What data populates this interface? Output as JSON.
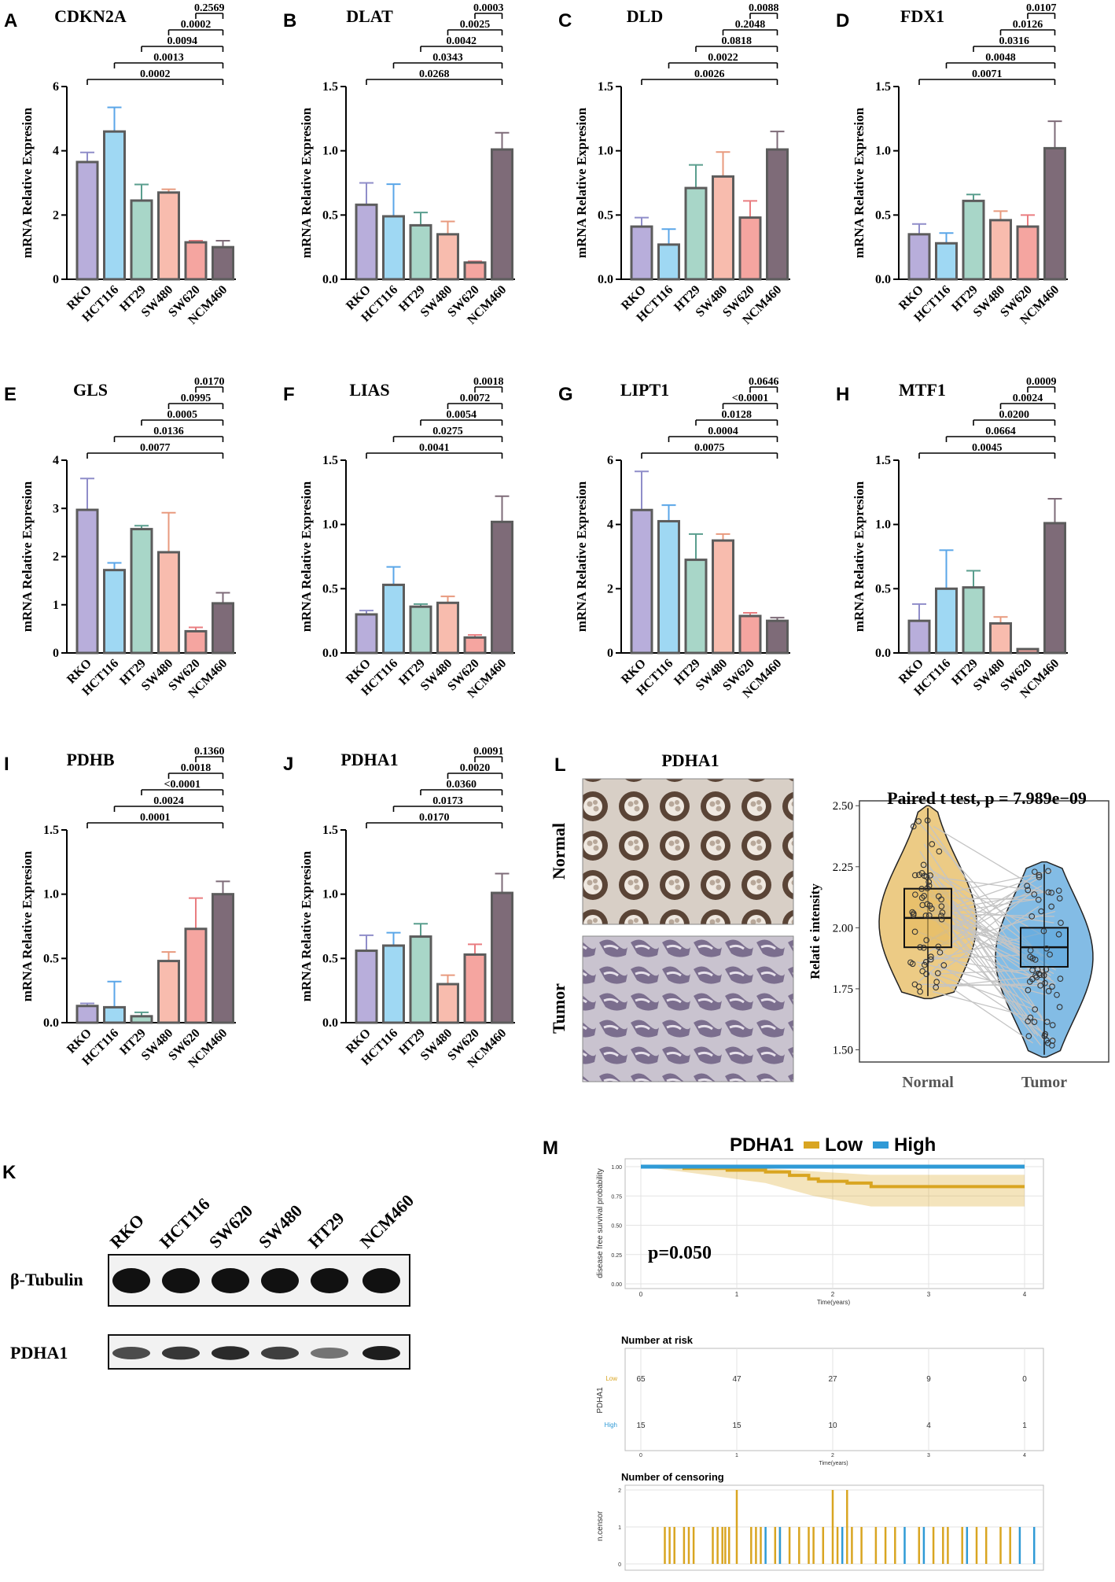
{
  "chart_data": {
    "type": "bar",
    "cell_lines": [
      "RKO",
      "HCT116",
      "HT29",
      "SW480",
      "SW620",
      "NCM460"
    ],
    "bar_colors": [
      "#b8aedb",
      "#9fd8f3",
      "#a8d6c8",
      "#f8bcae",
      "#f5a5a0",
      "#7e6b78"
    ],
    "err_colors": [
      "#8f8dc9",
      "#5aa6e8",
      "#5a9e8e",
      "#e89a7e",
      "#e97d80",
      "#7e6b78"
    ],
    "ylabel": "mRNA Relative Expresion",
    "bar_panels": [
      {
        "letter": "A",
        "title": "CDKN2A",
        "ylim": [
          0,
          6
        ],
        "yticks": [
          "0",
          "2",
          "4",
          "6"
        ],
        "values": [
          3.65,
          4.6,
          2.45,
          2.7,
          1.15,
          1.0
        ],
        "errors": [
          0.3,
          0.75,
          0.5,
          0.1,
          0.05,
          0.2
        ],
        "pvalues": [
          "0.0002",
          "0.0013",
          "0.0094",
          "0.0002",
          "0.2569"
        ]
      },
      {
        "letter": "B",
        "title": "DLAT",
        "ylim": [
          0,
          1.5
        ],
        "yticks": [
          "0.0",
          "0.5",
          "1.0",
          "1.5"
        ],
        "values": [
          0.58,
          0.49,
          0.42,
          0.35,
          0.13,
          1.01
        ],
        "errors": [
          0.17,
          0.25,
          0.1,
          0.1,
          0.01,
          0.13
        ],
        "pvalues": [
          "0.0268",
          "0.0343",
          "0.0042",
          "0.0025",
          "0.0003"
        ]
      },
      {
        "letter": "C",
        "title": "DLD",
        "ylim": [
          0,
          1.5
        ],
        "yticks": [
          "0.0",
          "0.5",
          "1.0",
          "1.5"
        ],
        "values": [
          0.41,
          0.27,
          0.71,
          0.8,
          0.48,
          1.01
        ],
        "errors": [
          0.07,
          0.12,
          0.18,
          0.19,
          0.13,
          0.14
        ],
        "pvalues": [
          "0.0026",
          "0.0022",
          "0.0818",
          "0.2048",
          "0.0088"
        ]
      },
      {
        "letter": "D",
        "title": "FDX1",
        "ylim": [
          0,
          1.5
        ],
        "yticks": [
          "0.0",
          "0.5",
          "1.0",
          "1.5"
        ],
        "values": [
          0.35,
          0.28,
          0.61,
          0.46,
          0.41,
          1.02
        ],
        "errors": [
          0.08,
          0.08,
          0.05,
          0.07,
          0.09,
          0.21
        ],
        "pvalues": [
          "0.0071",
          "0.0048",
          "0.0316",
          "0.0126",
          "0.0107"
        ]
      },
      {
        "letter": "E",
        "title": "GLS",
        "ylim": [
          0,
          4
        ],
        "yticks": [
          "0",
          "1",
          "2",
          "3",
          "4"
        ],
        "values": [
          2.97,
          1.72,
          2.57,
          2.09,
          0.45,
          1.03
        ],
        "errors": [
          0.65,
          0.15,
          0.07,
          0.82,
          0.08,
          0.22
        ],
        "pvalues": [
          "0.0077",
          "0.0136",
          "0.0005",
          "0.0995",
          "0.0170"
        ]
      },
      {
        "letter": "F",
        "title": "LIAS",
        "ylim": [
          0,
          1.5
        ],
        "yticks": [
          "0.0",
          "0.5",
          "1.0",
          "1.5"
        ],
        "values": [
          0.3,
          0.53,
          0.36,
          0.39,
          0.12,
          1.02
        ],
        "errors": [
          0.03,
          0.14,
          0.02,
          0.05,
          0.02,
          0.2
        ],
        "pvalues": [
          "0.0041",
          "0.0275",
          "0.0054",
          "0.0072",
          "0.0018"
        ]
      },
      {
        "letter": "G",
        "title": "LIPT1",
        "ylim": [
          0,
          6
        ],
        "yticks": [
          "0",
          "2",
          "4",
          "6"
        ],
        "values": [
          4.45,
          4.1,
          2.9,
          3.5,
          1.15,
          1.0
        ],
        "errors": [
          1.2,
          0.5,
          0.8,
          0.2,
          0.1,
          0.1
        ],
        "pvalues": [
          "0.0075",
          "0.0004",
          "0.0128",
          "<0.0001",
          "0.0646"
        ]
      },
      {
        "letter": "H",
        "title": "MTF1",
        "ylim": [
          0,
          1.5
        ],
        "yticks": [
          "0.0",
          "0.5",
          "1.0",
          "1.5"
        ],
        "values": [
          0.25,
          0.5,
          0.51,
          0.23,
          0.03,
          1.01
        ],
        "errors": [
          0.13,
          0.3,
          0.13,
          0.05,
          0.0,
          0.19
        ],
        "pvalues": [
          "0.0045",
          "0.0664",
          "0.0200",
          "0.0024",
          "0.0009"
        ]
      },
      {
        "letter": "I",
        "title": "PDHB",
        "ylim": [
          0,
          1.5
        ],
        "yticks": [
          "0.0",
          "0.5",
          "1.0",
          "1.5"
        ],
        "values": [
          0.13,
          0.12,
          0.05,
          0.48,
          0.73,
          1.0
        ],
        "errors": [
          0.02,
          0.2,
          0.03,
          0.07,
          0.24,
          0.1
        ],
        "pvalues": [
          "0.0001",
          "0.0024",
          "<0.0001",
          "0.0018",
          "0.1360"
        ]
      },
      {
        "letter": "J",
        "title": "PDHA1",
        "ylim": [
          0,
          1.5
        ],
        "yticks": [
          "0.0",
          "0.5",
          "1.0",
          "1.5"
        ],
        "values": [
          0.56,
          0.6,
          0.67,
          0.3,
          0.53,
          1.01
        ],
        "errors": [
          0.12,
          0.1,
          0.1,
          0.07,
          0.08,
          0.15
        ],
        "pvalues": [
          "0.0170",
          "0.0173",
          "0.0360",
          "0.0020",
          "0.0091"
        ]
      }
    ],
    "violin": {
      "letter": "L",
      "ihc_title": "PDHA1",
      "row_labels": [
        "Normal",
        "Tumor"
      ],
      "stat_title": "Paired t test, p = 7.989e−09",
      "ylabel": "Relati e intensity",
      "groups": [
        "Normal",
        "Tumor"
      ],
      "ylim": [
        1.45,
        2.52
      ],
      "yticks": [
        "1.50",
        "1.75",
        "2.00",
        "2.25",
        "2.50"
      ],
      "normal_box": {
        "q1": 1.92,
        "median": 2.04,
        "q3": 2.16,
        "min": 1.72,
        "max": 2.49
      },
      "tumor_box": {
        "q1": 1.84,
        "median": 1.92,
        "q3": 2.0,
        "min": 1.48,
        "max": 2.26
      },
      "colors": {
        "normal": "#e6b95c",
        "tumor": "#5aa5dc"
      }
    },
    "blot": {
      "letter": "K",
      "lanes": [
        "RKO",
        "HCT116",
        "SW620",
        "SW480",
        "HT29",
        "NCM460"
      ],
      "rows": [
        "β-Tubulin",
        "PDHA1"
      ],
      "pdha1_intensity": [
        0.65,
        0.8,
        0.9,
        0.75,
        0.35,
        1.0
      ]
    },
    "km": {
      "letter": "M",
      "title_prefix": "PDHA1",
      "legend": [
        "Low",
        "High"
      ],
      "colors": {
        "low": "#d9a521",
        "high": "#2f9ad6"
      },
      "pvalue_text": "p=0.050",
      "ylabel": "disease free survival probability",
      "xlabel": "Time(years)",
      "xticks": [
        "0",
        "1",
        "2",
        "3",
        "4"
      ],
      "yticks": [
        "0.00",
        "0.25",
        "0.50",
        "0.75",
        "1.00"
      ],
      "low_curve": [
        [
          0,
          1.0
        ],
        [
          0.45,
          0.985
        ],
        [
          0.9,
          0.97
        ],
        [
          1.3,
          0.955
        ],
        [
          1.55,
          0.925
        ],
        [
          1.75,
          0.895
        ],
        [
          1.85,
          0.875
        ],
        [
          2.15,
          0.86
        ],
        [
          2.4,
          0.83
        ],
        [
          4.0,
          0.83
        ]
      ],
      "high_curve": [
        [
          0,
          1.0
        ],
        [
          4.0,
          1.0
        ]
      ],
      "risk_title": "Number at risk",
      "risk_ylabel": "PDHA1",
      "risk_groups": [
        "Low",
        "High"
      ],
      "risk_low": [
        "65",
        "47",
        "27",
        "9",
        "0"
      ],
      "risk_high": [
        "15",
        "15",
        "10",
        "4",
        "1"
      ],
      "censor_title": "Number of censoring",
      "censor_ylabel": "n.censor",
      "censor_yticks": [
        "0",
        "1",
        "2"
      ]
    }
  }
}
